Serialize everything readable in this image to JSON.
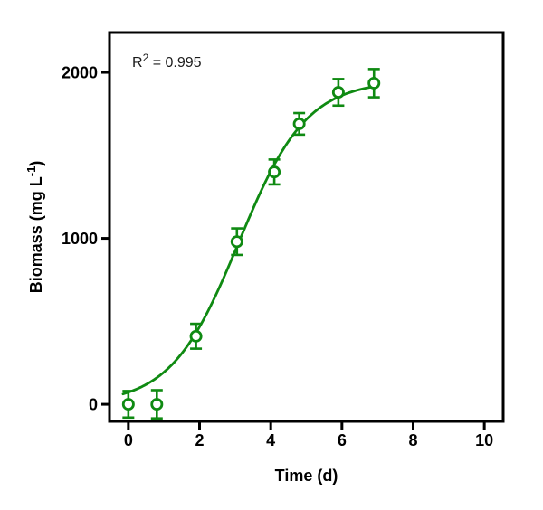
{
  "figure": {
    "background": "#ffffff",
    "annotation": {
      "full_text": "R² = 0.995",
      "base": "R",
      "sup": "2",
      "rest": " = 0.995"
    }
  },
  "chart_data": {
    "type": "scatter",
    "title": "",
    "xlabel": "Time (d)",
    "ylabel": "Biomass (mg L⁻¹)",
    "ylabel_parts": {
      "main": "Biomass (mg L",
      "sup": "-1",
      "close": ")"
    },
    "xlim": [
      -0.53,
      10.53
    ],
    "ylim": [
      -103,
      2240
    ],
    "x_ticks": [
      0,
      2,
      4,
      6,
      8,
      10
    ],
    "y_ticks": [
      0,
      1000,
      2000
    ],
    "grid": false,
    "legend": "none",
    "annotation": "R² = 0.995",
    "series": [
      {
        "name": "Biomass",
        "marker": "open-circle",
        "color": "#0f8a12",
        "points": [
          {
            "x": 0.0,
            "y": 0,
            "err": 80
          },
          {
            "x": 0.8,
            "y": 0,
            "err": 85
          },
          {
            "x": 1.9,
            "y": 410,
            "err": 75
          },
          {
            "x": 3.05,
            "y": 980,
            "err": 80
          },
          {
            "x": 4.1,
            "y": 1400,
            "err": 75
          },
          {
            "x": 4.8,
            "y": 1690,
            "err": 65
          },
          {
            "x": 5.9,
            "y": 1880,
            "err": 80
          },
          {
            "x": 6.9,
            "y": 1935,
            "err": 85
          }
        ]
      }
    ],
    "fit_curve": {
      "model": "logistic",
      "L": 1950,
      "k": 1.05,
      "t0": 3.1,
      "t_min": -0.15,
      "t_max": 6.92,
      "r_squared": 0.995
    }
  },
  "colors": {
    "accent_green": "#0f8a12",
    "axis_black": "#000000",
    "text_dark": "#1a1a1a"
  }
}
